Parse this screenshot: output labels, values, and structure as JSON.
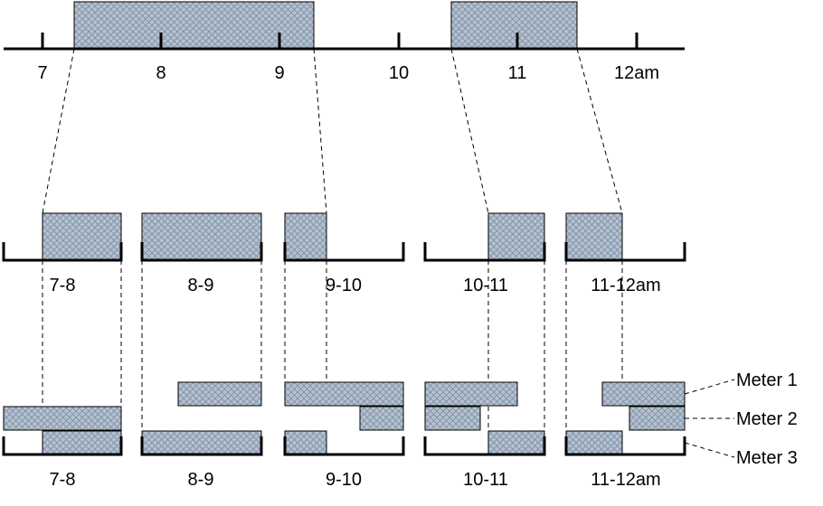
{
  "top_axis": {
    "tick_labels": [
      "7",
      "8",
      "9",
      "10",
      "11",
      "12am"
    ]
  },
  "middle_row": {
    "group_labels": [
      "7-8",
      "8-9",
      "9-10",
      "10-11",
      "11-12am"
    ]
  },
  "bottom_row": {
    "group_labels": [
      "7-8",
      "8-9",
      "9-10",
      "10-11",
      "11-12am"
    ],
    "meter_labels": [
      "Meter 1",
      "Meter 2",
      "Meter 3"
    ]
  },
  "colors": {
    "block_fill": "#b4c1d0",
    "hatch_line": "#7d8ea2",
    "line": "#000000"
  }
}
